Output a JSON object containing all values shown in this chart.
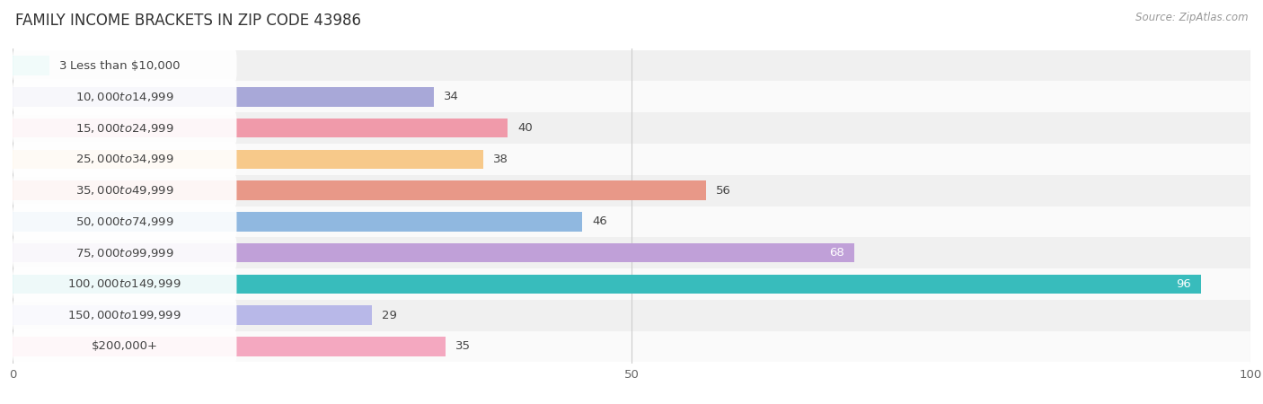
{
  "title": "FAMILY INCOME BRACKETS IN ZIP CODE 43986",
  "source": "Source: ZipAtlas.com",
  "categories": [
    "Less than $10,000",
    "$10,000 to $14,999",
    "$15,000 to $24,999",
    "$25,000 to $34,999",
    "$35,000 to $49,999",
    "$50,000 to $74,999",
    "$75,000 to $99,999",
    "$100,000 to $149,999",
    "$150,000 to $199,999",
    "$200,000+"
  ],
  "values": [
    3,
    34,
    40,
    38,
    56,
    46,
    68,
    96,
    29,
    35
  ],
  "bar_colors": [
    "#5ecfca",
    "#a8a8d8",
    "#f09aaa",
    "#f7c98a",
    "#e89888",
    "#90b8e0",
    "#c0a0d8",
    "#38bcbc",
    "#b8b8e8",
    "#f4a8c0"
  ],
  "label_colors": [
    "#444444",
    "#444444",
    "#444444",
    "#444444",
    "#444444",
    "#444444",
    "white",
    "white",
    "#444444",
    "#444444"
  ],
  "xlim": [
    0,
    100
  ],
  "xticks": [
    0,
    50,
    100
  ],
  "background_color": "#ffffff",
  "row_bg_even": "#f0f0f0",
  "row_bg_odd": "#fafafa",
  "title_fontsize": 12,
  "source_fontsize": 8.5,
  "value_fontsize": 9.5,
  "category_fontsize": 9.5,
  "bar_height": 0.62
}
